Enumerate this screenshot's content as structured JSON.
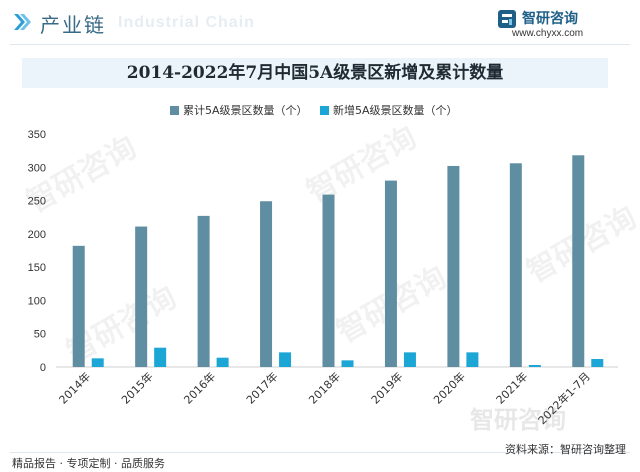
{
  "header": {
    "section_title": "产业链",
    "section_title_en": "Industrial Chain",
    "brand_name": "智研咨询",
    "brand_url": "www.chyxx.com"
  },
  "watermark": {
    "text": "智研咨询"
  },
  "chart_data": {
    "type": "bar",
    "title": "2014-2022年7月中国5A级景区新增及累计数量",
    "categories": [
      "2014年",
      "2015年",
      "2016年",
      "2017年",
      "2018年",
      "2019年",
      "2020年",
      "2021年",
      "2022年1-7月"
    ],
    "series": [
      {
        "name": "累计5A级景区数量（个）",
        "color": "#5f8ea3",
        "values": [
          182,
          211,
          227,
          249,
          259,
          280,
          302,
          306,
          318
        ]
      },
      {
        "name": "新增5A级景区数量（个）",
        "color": "#1ca6d6",
        "values": [
          13,
          29,
          14,
          22,
          10,
          22,
          22,
          3,
          12
        ]
      }
    ],
    "ylim": [
      0,
      350
    ],
    "yticks": [
      0,
      50,
      100,
      150,
      200,
      250,
      300,
      350
    ],
    "grid": false,
    "legend_position": "top-center"
  },
  "footer": {
    "left": "精品报告 · 专项定制 · 品质服务",
    "right": "资料来源：智研咨询整理"
  }
}
